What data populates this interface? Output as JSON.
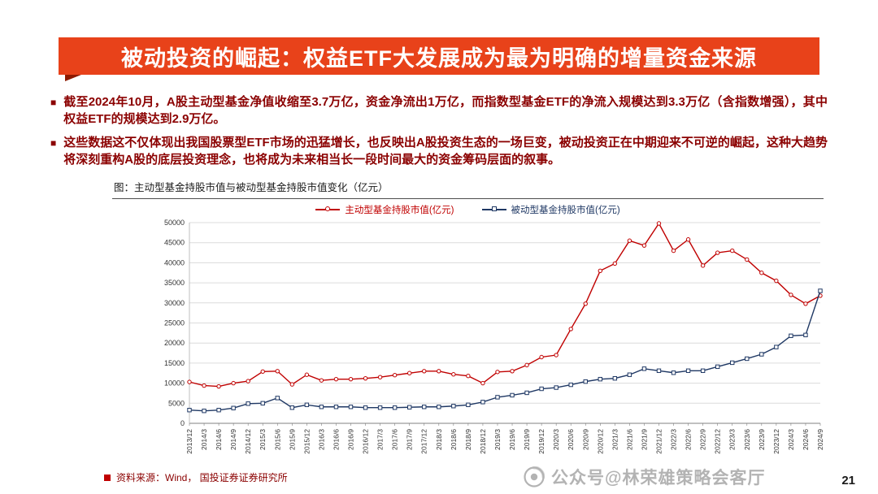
{
  "slide": {
    "title": "被动投资的崛起：权益ETF大发展成为最为明确的增量资金来源",
    "page_number": "21"
  },
  "bullets": [
    {
      "marker": "■",
      "text": "截至2024年10月，A股主动型基金净值收缩至3.7万亿，资金净流出1万亿，而指数型基金ETF的净流入规模达到3.3万亿（含指数增强），其中权益ETF的规模达到2.9万亿。"
    },
    {
      "marker": "■",
      "text": "这些数据这不仅体现出我国股票型ETF市场的迅猛增长，也反映出A股投资生态的一场巨变，被动投资正在中期迎来不可逆的崛起，这种大趋势将深刻重构A股的底层投资理念，也将成为未来相当长一段时间最大的资金筹码层面的叙事。"
    }
  ],
  "footer": {
    "source": "资料来源：Wind， 国投证券证券研究所"
  },
  "watermark": {
    "text": "公众号@林荣雄策略会客厅"
  },
  "colors": {
    "banner_red": "#E8421A",
    "bullet_text": "#8B0000",
    "active_series": "#C00000",
    "passive_series": "#1F3864",
    "gridline": "#DCDCDC"
  },
  "chart_data": {
    "type": "line",
    "title": "图：主动型基金持股市值与被动型基金持股市值变化（亿元）",
    "grid": true,
    "legend_position": "top",
    "ylim": [
      0,
      50000
    ],
    "ytick_interval": 5000,
    "categories": [
      "2013/12",
      "2014/3",
      "2014/6",
      "2014/9",
      "2014/12",
      "2015/3",
      "2015/6",
      "2015/9",
      "2015/12",
      "2016/3",
      "2016/6",
      "2016/9",
      "2016/12",
      "2017/3",
      "2017/6",
      "2017/9",
      "2017/12",
      "2018/3",
      "2018/6",
      "2018/9",
      "2018/12",
      "2019/3",
      "2019/6",
      "2019/9",
      "2019/12",
      "2020/3",
      "2020/6",
      "2020/9",
      "2020/12",
      "2021/3",
      "2021/6",
      "2021/9",
      "2021/12",
      "2022/3",
      "2022/6",
      "2022/9",
      "2022/12",
      "2023/3",
      "2023/6",
      "2023/9",
      "2023/12",
      "2024/3",
      "2024/6",
      "2024/9"
    ],
    "series": [
      {
        "name": "主动型基金持股市值(亿元)",
        "color": "#C00000",
        "marker": "circle",
        "values": [
          10300,
          9400,
          9200,
          10000,
          10500,
          12900,
          13000,
          9700,
          12100,
          10700,
          11000,
          11000,
          11200,
          11500,
          12000,
          12500,
          13000,
          13000,
          12200,
          11800,
          10000,
          12800,
          13000,
          14500,
          16500,
          17000,
          23500,
          29800,
          38000,
          39800,
          45500,
          44300,
          49800,
          43000,
          45800,
          39300,
          42500,
          43000,
          40800,
          37500,
          35500,
          32000,
          29800,
          31800
        ]
      },
      {
        "name": "被动型基金持股市值(亿元)",
        "color": "#1F3864",
        "marker": "square",
        "values": [
          3300,
          3100,
          3300,
          3800,
          4900,
          5000,
          6300,
          3900,
          4600,
          4100,
          4100,
          4100,
          3900,
          3900,
          3900,
          4000,
          4100,
          4100,
          4300,
          4600,
          5300,
          6500,
          7000,
          7600,
          8600,
          8900,
          9600,
          10400,
          11000,
          11200,
          12100,
          13600,
          13100,
          12600,
          13100,
          13100,
          14100,
          15100,
          16100,
          17200,
          19000,
          21800,
          22000,
          33000
        ]
      }
    ]
  }
}
